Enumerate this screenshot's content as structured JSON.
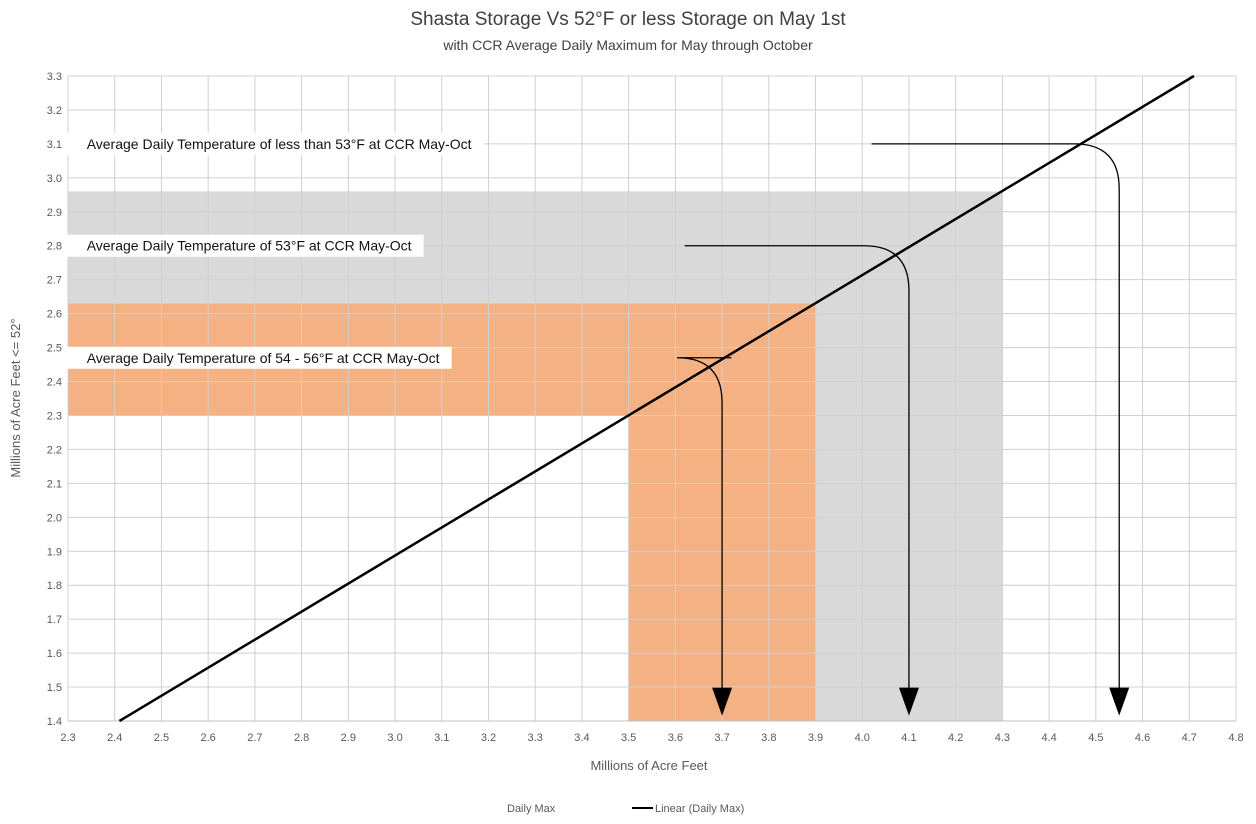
{
  "chart_data": {
    "type": "line",
    "title": "Shasta Storage Vs 52°F or less Storage on May 1st",
    "subtitle": "with CCR Average Daily Maximum for May through October",
    "xlabel": "Millions of Acre Feet",
    "ylabel": "Millions of Acre Feet <= 52°",
    "xlim": [
      2.3,
      4.8
    ],
    "ylim": [
      1.4,
      3.3
    ],
    "x_ticks": [
      "2.3",
      "2.4",
      "2.5",
      "2.6",
      "2.7",
      "2.8",
      "2.9",
      "3.0",
      "3.1",
      "3.2",
      "3.3",
      "3.4",
      "3.5",
      "3.6",
      "3.7",
      "3.8",
      "3.9",
      "4.0",
      "4.1",
      "4.2",
      "4.3",
      "4.4",
      "4.5",
      "4.6",
      "4.7",
      "4.8"
    ],
    "y_ticks": [
      "1.4",
      "1.5",
      "1.6",
      "1.7",
      "1.8",
      "1.9",
      "2.0",
      "2.1",
      "2.2",
      "2.3",
      "2.4",
      "2.5",
      "2.6",
      "2.7",
      "2.8",
      "2.9",
      "3.0",
      "3.1",
      "3.2",
      "3.3"
    ],
    "grid": true,
    "series": [
      {
        "name": "Linear (Daily Max)",
        "color": "#000000",
        "x": [
          2.41,
          4.71
        ],
        "y": [
          1.4,
          3.3
        ]
      }
    ],
    "regions": [
      {
        "color": "#d9d9d9",
        "x": [
          2.3,
          4.3
        ],
        "y": [
          1.4,
          2.96
        ],
        "x_cut": 3.9,
        "y_cut": 2.63
      },
      {
        "color": "#f4b183",
        "x": [
          2.3,
          3.9
        ],
        "y": [
          1.4,
          2.63
        ],
        "x_cut": 3.5,
        "y_cut": 2.3
      }
    ],
    "annotations": [
      {
        "text": "Average Daily Temperature of less than 53°F at CCR May-Oct",
        "label_x": 2.34,
        "y": 3.1,
        "line_start_x": 4.02,
        "corner_x": 4.55,
        "arrow_to_y": 1.41
      },
      {
        "text": "Average Daily Temperature of 53°F at CCR May-Oct",
        "label_x": 2.34,
        "y": 2.8,
        "line_start_x": 3.62,
        "corner_x": 4.1,
        "arrow_to_y": 1.41
      },
      {
        "text": "Average Daily Temperature of 54 - 56°F at CCR May-Oct",
        "label_x": 2.34,
        "y": 2.47,
        "line_start_x": 3.72,
        "corner_x": 3.7,
        "arrow_to_y": 1.41
      }
    ],
    "legend": {
      "placement": "bottom",
      "entries": [
        {
          "label": "Daily Max",
          "symbol": "none"
        },
        {
          "label": "Linear (Daily Max)",
          "symbol": "line"
        }
      ]
    }
  }
}
